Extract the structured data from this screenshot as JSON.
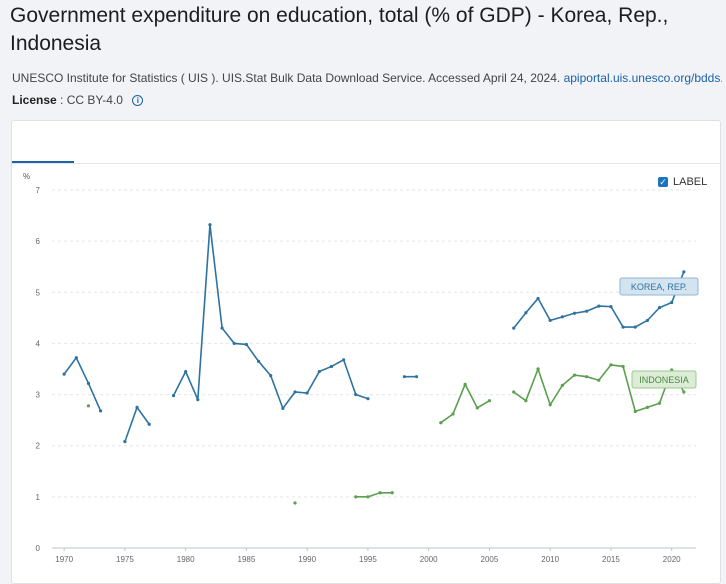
{
  "header": {
    "title": "Government expenditure on education, total (% of GDP) - Korea, Rep., Indonesia",
    "source_text": "UNESCO Institute for Statistics ( UIS ). UIS.Stat Bulk Data Download Service. Accessed April 24, 2024.",
    "source_link": "apiportal.uis.unesco.org/bdds.",
    "license_label": "License",
    "license_value": ": CC BY-4.0"
  },
  "controls": {
    "label_toggle": "LABEL",
    "label_checked": true
  },
  "chart_data": {
    "type": "line",
    "ylabel": "%",
    "xlim": [
      1969,
      2022
    ],
    "ylim": [
      0,
      7
    ],
    "x_ticks": [
      1970,
      1975,
      1980,
      1985,
      1990,
      1995,
      2000,
      2005,
      2010,
      2015,
      2020
    ],
    "y_ticks": [
      0,
      1,
      2,
      3,
      4,
      5,
      6,
      7
    ],
    "grid": true,
    "series": [
      {
        "name": "KOREA, REP.",
        "color": "#2e73a0",
        "points": [
          [
            1970,
            3.4
          ],
          [
            1971,
            3.72
          ],
          [
            1972,
            3.22
          ],
          [
            1973,
            2.68
          ],
          [
            1975,
            2.08
          ],
          [
            1976,
            2.75
          ],
          [
            1977,
            2.42
          ],
          [
            1979,
            2.98
          ],
          [
            1980,
            3.45
          ],
          [
            1981,
            2.9
          ],
          [
            1982,
            6.32
          ],
          [
            1983,
            4.3
          ],
          [
            1984,
            4.0
          ],
          [
            1985,
            3.98
          ],
          [
            1986,
            3.65
          ],
          [
            1987,
            3.37
          ],
          [
            1988,
            2.73
          ],
          [
            1989,
            3.05
          ],
          [
            1990,
            3.03
          ],
          [
            1991,
            3.45
          ],
          [
            1992,
            3.55
          ],
          [
            1993,
            3.68
          ],
          [
            1994,
            3.0
          ],
          [
            1995,
            2.92
          ],
          [
            1998,
            3.35
          ],
          [
            1999,
            3.35
          ],
          [
            2007,
            4.3
          ],
          [
            2008,
            4.6
          ],
          [
            2009,
            4.88
          ],
          [
            2010,
            4.45
          ],
          [
            2011,
            4.52
          ],
          [
            2012,
            4.59
          ],
          [
            2013,
            4.63
          ],
          [
            2014,
            4.73
          ],
          [
            2015,
            4.72
          ],
          [
            2016,
            4.32
          ],
          [
            2017,
            4.32
          ],
          [
            2018,
            4.45
          ],
          [
            2019,
            4.7
          ],
          [
            2020,
            4.8
          ],
          [
            2021,
            5.4
          ]
        ],
        "label": "KOREA, REP."
      },
      {
        "name": "INDONESIA",
        "color": "#5aa04f",
        "points": [
          [
            1972,
            2.78
          ],
          [
            1989,
            0.88
          ],
          [
            1994,
            1.0
          ],
          [
            1995,
            1.0
          ],
          [
            1996,
            1.08
          ],
          [
            1997,
            1.08
          ],
          [
            2001,
            2.45
          ],
          [
            2002,
            2.62
          ],
          [
            2003,
            3.2
          ],
          [
            2004,
            2.74
          ],
          [
            2005,
            2.88
          ],
          [
            2007,
            3.05
          ],
          [
            2008,
            2.88
          ],
          [
            2009,
            3.5
          ],
          [
            2010,
            2.8
          ],
          [
            2011,
            3.18
          ],
          [
            2012,
            3.38
          ],
          [
            2013,
            3.35
          ],
          [
            2014,
            3.28
          ],
          [
            2015,
            3.58
          ],
          [
            2016,
            3.55
          ],
          [
            2017,
            2.67
          ],
          [
            2018,
            2.75
          ],
          [
            2019,
            2.83
          ],
          [
            2020,
            3.48
          ],
          [
            2021,
            3.05
          ]
        ],
        "label": "INDONESIA"
      }
    ]
  }
}
